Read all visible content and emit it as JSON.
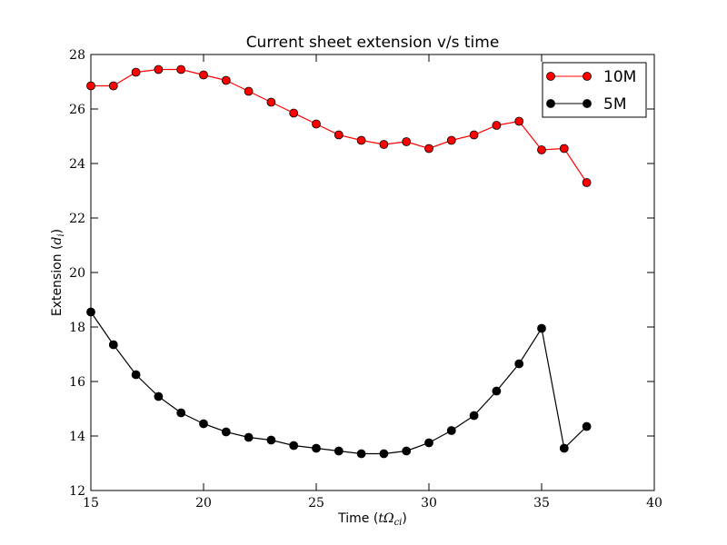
{
  "chart_data": {
    "type": "line",
    "title": "Current sheet extension v/s time",
    "xlabel_text": "Time (",
    "xlabel_math": "tΩ",
    "xlabel_sub": "ci",
    "xlabel_close": ")",
    "ylabel_text": "Extension (",
    "ylabel_math": "d",
    "ylabel_sub": "i",
    "ylabel_close": ")",
    "xlim": [
      15,
      40
    ],
    "ylim": [
      12,
      28
    ],
    "xticks": [
      15,
      20,
      25,
      30,
      35,
      40
    ],
    "yticks": [
      12,
      14,
      16,
      18,
      20,
      22,
      24,
      26,
      28
    ],
    "xtick_labels": [
      "15",
      "20",
      "25",
      "30",
      "35",
      "40"
    ],
    "ytick_labels": [
      "12",
      "14",
      "16",
      "18",
      "20",
      "22",
      "24",
      "26",
      "28"
    ],
    "grid": false,
    "legend_position": "top-right",
    "series": [
      {
        "name": "10M",
        "color": "#ff0000",
        "marker_color": "#ff0000",
        "x": [
          15,
          16,
          17,
          18,
          19,
          20,
          21,
          22,
          23,
          24,
          25,
          26,
          27,
          28,
          29,
          30,
          31,
          32,
          33,
          34,
          35,
          36,
          37
        ],
        "y": [
          26.85,
          26.85,
          27.35,
          27.45,
          27.45,
          27.25,
          27.05,
          26.65,
          26.25,
          25.85,
          25.45,
          25.05,
          24.85,
          24.7,
          24.8,
          24.55,
          24.85,
          25.05,
          25.4,
          25.55,
          24.5,
          24.55,
          23.3
        ]
      },
      {
        "name": "5M",
        "color": "#000000",
        "marker_color": "#000000",
        "x": [
          15,
          16,
          17,
          18,
          19,
          20,
          21,
          22,
          23,
          24,
          25,
          26,
          27,
          28,
          29,
          30,
          31,
          32,
          33,
          34,
          35,
          36,
          37
        ],
        "y": [
          18.55,
          17.35,
          16.25,
          15.45,
          14.85,
          14.45,
          14.15,
          13.95,
          13.85,
          13.65,
          13.55,
          13.45,
          13.35,
          13.35,
          13.45,
          13.75,
          14.2,
          14.75,
          15.65,
          16.65,
          17.95,
          13.55,
          14.35
        ]
      }
    ]
  }
}
